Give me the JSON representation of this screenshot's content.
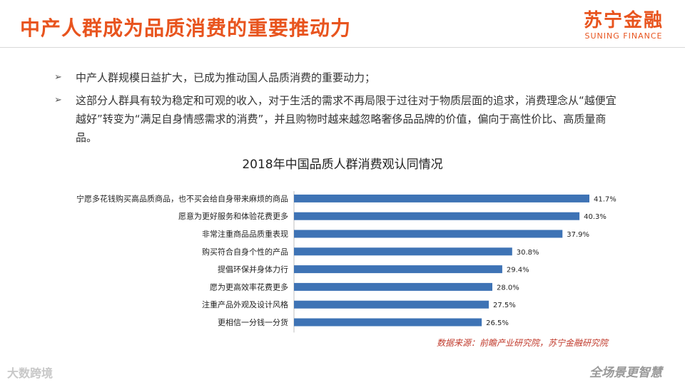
{
  "header": {
    "title": "中产人群成为品质消费的重要推动力",
    "logo_cn": "苏宁金融",
    "logo_en": "SUNING FINANCE"
  },
  "bullets": [
    "中产人群规模日益扩大，已成为推动国人品质消费的重要动力；",
    "这部分人群具有较为稳定和可观的收入，对于生活的需求不再局限于过往对于物质层面的追求，消费理念从“越便宜越好”转变为“满足自身情感需求的消费”，并且购物时越来越忽略奢侈品品牌的价值，偏向于高性价比、高质量商品。"
  ],
  "bullet_marker": "➢",
  "chart_data": {
    "type": "bar",
    "orientation": "horizontal",
    "title": "2018年中国品质人群消费观认同情况",
    "categories": [
      "宁愿多花钱购买高品质商品，也不买会给自身带来麻烦的商品",
      "愿意为更好服务和体验花费更多",
      "非常注重商品品质重表现",
      "购买符合自身个性的产品",
      "提倡环保并身体力行",
      "愿为更高效率花费更多",
      "注重产品外观及设计风格",
      "更相信一分钱一分货"
    ],
    "values": [
      41.7,
      40.3,
      37.9,
      30.8,
      29.4,
      28.0,
      27.5,
      26.5
    ],
    "value_labels": [
      "41.7%",
      "40.3%",
      "37.9%",
      "30.8%",
      "29.4%",
      "28.0%",
      "27.5%",
      "26.5%"
    ],
    "unit": "%",
    "xlim": [
      0,
      45
    ],
    "grid": false,
    "bar_color": "#3e73b5"
  },
  "source": "数据来源：前瞻产业研究院，苏宁金融研究院",
  "watermarks": {
    "left": "大数跨境",
    "right": "全场景更智慧"
  }
}
